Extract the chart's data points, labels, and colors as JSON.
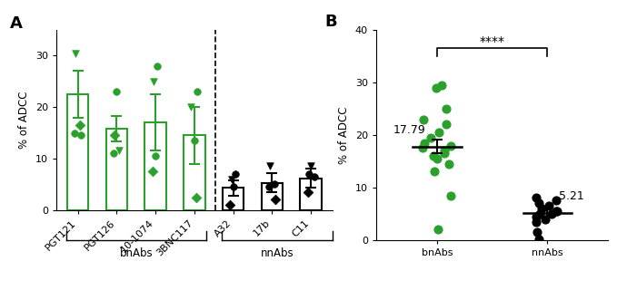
{
  "panel_A": {
    "categories": [
      "PGT121",
      "PGT126",
      "10-1074",
      "3BNC117",
      "A32",
      "17b",
      "C11"
    ],
    "bar_means": [
      22.5,
      15.8,
      17.0,
      14.5,
      4.3,
      5.3,
      6.2
    ],
    "bar_errors": [
      4.5,
      2.5,
      5.5,
      5.5,
      1.5,
      1.8,
      1.8
    ],
    "bn_color": "#2ca02c",
    "nn_color": "#000000",
    "bn_indices": [
      0,
      1,
      2,
      3
    ],
    "nn_indices": [
      4,
      5,
      6
    ],
    "data_points": {
      "PGT121": {
        "values": [
          30.5,
          16.5,
          15.0,
          14.5
        ],
        "markers": [
          "v",
          "D",
          "o",
          "o"
        ],
        "jitter": [
          -0.05,
          0.05,
          -0.08,
          0.08
        ]
      },
      "PGT126": {
        "values": [
          23.0,
          14.5,
          11.5,
          11.0
        ],
        "markers": [
          "o",
          "D",
          "v",
          "o"
        ],
        "jitter": [
          0.0,
          -0.05,
          0.05,
          -0.08
        ]
      },
      "10-1074": {
        "values": [
          28.0,
          25.0,
          10.5,
          7.5
        ],
        "markers": [
          "o",
          "v",
          "o",
          "D"
        ],
        "jitter": [
          0.05,
          -0.05,
          0.0,
          -0.08
        ]
      },
      "3BNC117": {
        "values": [
          23.0,
          20.0,
          13.5,
          2.5
        ],
        "markers": [
          "o",
          "v",
          "o",
          "D"
        ],
        "jitter": [
          0.08,
          -0.08,
          0.0,
          0.05
        ]
      },
      "A32": {
        "values": [
          7.0,
          6.0,
          4.5,
          1.0
        ],
        "markers": [
          "o",
          "v",
          "o",
          "D"
        ],
        "jitter": [
          0.05,
          -0.05,
          0.0,
          -0.08
        ]
      },
      "17b": {
        "values": [
          8.5,
          5.0,
          4.5,
          2.0
        ],
        "markers": [
          "v",
          "o",
          "o",
          "D"
        ],
        "jitter": [
          -0.05,
          0.05,
          -0.08,
          0.08
        ]
      },
      "C11": {
        "values": [
          8.5,
          7.0,
          6.5,
          3.5
        ],
        "markers": [
          "v",
          "o",
          "o",
          "D"
        ],
        "jitter": [
          0.0,
          -0.05,
          0.08,
          -0.08
        ]
      }
    },
    "ylabel": "% of ADCC",
    "ylim": [
      0,
      35
    ],
    "yticks": [
      0,
      10,
      20,
      30
    ],
    "group_labels": [
      "bnAbs",
      "nnAbs"
    ]
  },
  "panel_B": {
    "categories": [
      "bnAbs",
      "nnAbs"
    ],
    "means": [
      17.79,
      5.21
    ],
    "sem": [
      1.3,
      0.8
    ],
    "bn_color": "#2ca02c",
    "nn_color": "#000000",
    "bn_points": [
      29.5,
      29.0,
      25.0,
      23.0,
      22.0,
      20.5,
      19.5,
      18.5,
      18.0,
      17.5,
      17.0,
      16.5,
      16.0,
      15.5,
      14.5,
      13.0,
      8.5,
      2.0
    ],
    "nn_points": [
      8.0,
      7.5,
      7.0,
      6.5,
      6.0,
      5.5,
      5.5,
      5.0,
      5.0,
      4.5,
      4.0,
      3.5,
      1.5,
      0.2
    ],
    "ylabel": "% of ADCC",
    "ylim": [
      0,
      40
    ],
    "yticks": [
      0,
      10,
      20,
      30,
      40
    ],
    "significance": "****",
    "mean_labels": [
      "17.79",
      "5.21"
    ]
  }
}
